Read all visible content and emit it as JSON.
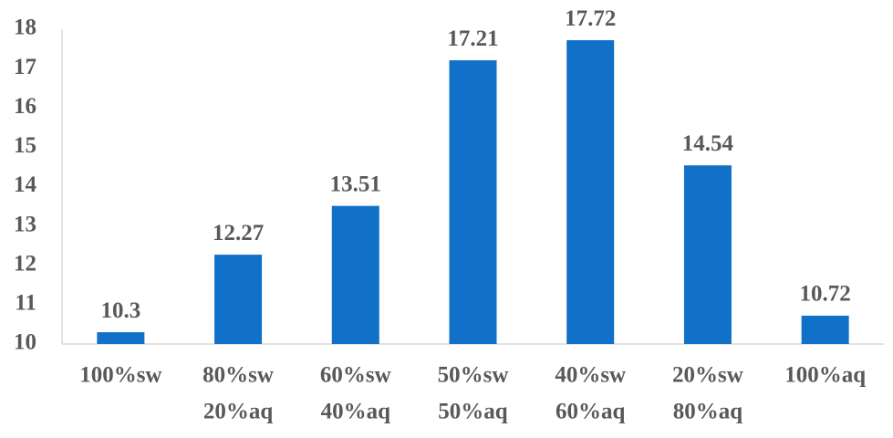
{
  "chart_data": {
    "type": "bar",
    "categories": [
      [
        "100%sw"
      ],
      [
        "80%sw",
        "20%aq"
      ],
      [
        "60%sw",
        "40%aq"
      ],
      [
        "50%sw",
        "50%aq"
      ],
      [
        "40%sw",
        "60%aq"
      ],
      [
        "20%sw",
        "80%aq"
      ],
      [
        "100%aq"
      ]
    ],
    "values": [
      10.3,
      12.27,
      13.51,
      17.21,
      17.72,
      14.54,
      10.72
    ],
    "color": "#1170c8",
    "ylim": [
      10,
      18
    ],
    "yticks": [
      10,
      11,
      12,
      13,
      14,
      15,
      16,
      17,
      18
    ],
    "grid": false
  }
}
